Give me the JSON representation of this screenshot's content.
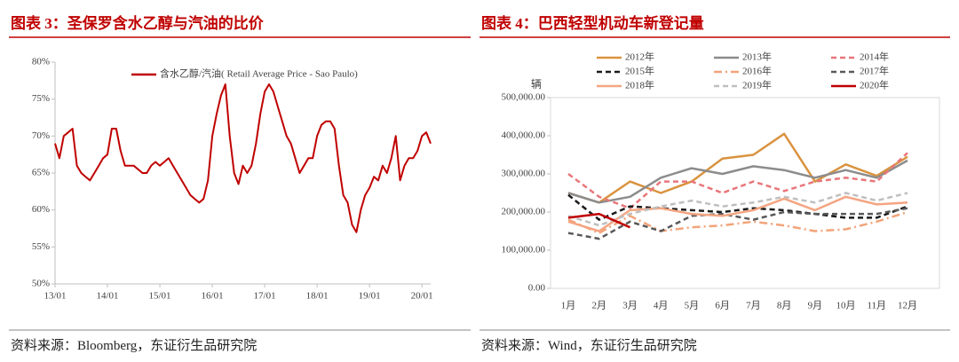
{
  "chart_data": [
    {
      "type": "line",
      "title": "图表 3：圣保罗含水乙醇与汽油的比价",
      "source": "资料来源：Bloomberg，东证衍生品研究院",
      "x": [
        "13/01",
        "13/02",
        "13/03",
        "13/04",
        "13/05",
        "13/06",
        "13/07",
        "13/08",
        "13/09",
        "13/10",
        "13/11",
        "13/12",
        "14/01",
        "14/02",
        "14/03",
        "14/04",
        "14/05",
        "14/06",
        "14/07",
        "14/08",
        "14/09",
        "14/10",
        "14/11",
        "14/12",
        "15/01",
        "15/02",
        "15/03",
        "15/04",
        "15/05",
        "15/06",
        "15/07",
        "15/08",
        "15/09",
        "15/10",
        "15/11",
        "15/12",
        "16/01",
        "16/02",
        "16/03",
        "16/04",
        "16/05",
        "16/06",
        "16/07",
        "16/08",
        "16/09",
        "16/10",
        "16/11",
        "16/12",
        "17/01",
        "17/02",
        "17/03",
        "17/04",
        "17/05",
        "17/06",
        "17/07",
        "17/08",
        "17/09",
        "17/10",
        "17/11",
        "17/12",
        "18/01",
        "18/02",
        "18/03",
        "18/04",
        "18/05",
        "18/06",
        "18/07",
        "18/08",
        "18/09",
        "18/10",
        "18/11",
        "18/12",
        "19/01",
        "19/02",
        "19/03",
        "19/04",
        "19/05",
        "19/06",
        "19/07",
        "19/08",
        "19/09",
        "19/10",
        "19/11",
        "19/12",
        "20/01",
        "20/02",
        "20/03"
      ],
      "series": [
        {
          "name": "含水乙醇/汽油( Retail Average Price - Sao Paulo)",
          "color": "#c00000",
          "style": "solid",
          "values": [
            69,
            67,
            70,
            70.5,
            71,
            66,
            65,
            64.5,
            64,
            65,
            66,
            67,
            67.5,
            71,
            71,
            68,
            66,
            66,
            66,
            65.5,
            65,
            65,
            66,
            66.5,
            66,
            66.5,
            67,
            66,
            65,
            64,
            63,
            62,
            61.5,
            61,
            61.5,
            64,
            70,
            73,
            75.5,
            77,
            70,
            65,
            63.5,
            66,
            65,
            66,
            69,
            73,
            76,
            77,
            76,
            74,
            72,
            70,
            69,
            67,
            65,
            66,
            67,
            67,
            70,
            71.5,
            72,
            72,
            71,
            66,
            62,
            61,
            58,
            57,
            60,
            62,
            63,
            64.5,
            64,
            66,
            65,
            67,
            70,
            64,
            66,
            67,
            67,
            68,
            70,
            70.5,
            69
          ]
        }
      ],
      "xticks": [
        "13/01",
        "14/01",
        "15/01",
        "16/01",
        "17/01",
        "18/01",
        "19/01",
        "20/01"
      ],
      "ylim": [
        50,
        80
      ],
      "yticks": [
        {
          "value": 50,
          "label": "50%"
        },
        {
          "value": 55,
          "label": "55%"
        },
        {
          "value": 60,
          "label": "60%"
        },
        {
          "value": 65,
          "label": "65%"
        },
        {
          "value": 70,
          "label": "70%"
        },
        {
          "value": 75,
          "label": "75%"
        },
        {
          "value": 80,
          "label": "80%"
        }
      ],
      "grid": false
    },
    {
      "type": "line",
      "title": "图表 4：巴西轻型机动车新登记量",
      "source": "资料来源：Wind，东证衍生品研究院",
      "ylabel": "辆",
      "x": [
        "1月",
        "2月",
        "3月",
        "4月",
        "5月",
        "6月",
        "7月",
        "8月",
        "9月",
        "10月",
        "11月",
        "12月"
      ],
      "series": [
        {
          "name": "2012年",
          "color": "#d9933f",
          "style": "solid",
          "values": [
            250000,
            225000,
            280000,
            250000,
            280000,
            340000,
            350000,
            405000,
            280000,
            325000,
            295000,
            345000
          ]
        },
        {
          "name": "2013年",
          "color": "#8c8c8c",
          "style": "solid",
          "values": [
            250000,
            225000,
            240000,
            290000,
            315000,
            300000,
            320000,
            310000,
            290000,
            310000,
            290000,
            335000
          ]
        },
        {
          "name": "2014年",
          "color": "#e8767a",
          "style": "dash",
          "values": [
            300000,
            240000,
            210000,
            280000,
            280000,
            250000,
            280000,
            255000,
            280000,
            290000,
            280000,
            355000
          ]
        },
        {
          "name": "2015年",
          "color": "#1a1a1a",
          "style": "dash",
          "values": [
            245000,
            180000,
            215000,
            210000,
            205000,
            200000,
            210000,
            205000,
            195000,
            185000,
            185000,
            215000
          ]
        },
        {
          "name": "2016年",
          "color": "#f2a47a",
          "style": "dashdot",
          "values": [
            180000,
            145000,
            190000,
            150000,
            160000,
            165000,
            175000,
            165000,
            150000,
            155000,
            175000,
            200000
          ]
        },
        {
          "name": "2017年",
          "color": "#595959",
          "style": "dash",
          "values": [
            145000,
            130000,
            175000,
            150000,
            190000,
            195000,
            180000,
            200000,
            195000,
            195000,
            195000,
            210000
          ]
        },
        {
          "name": "2018年",
          "color": "#f4a582",
          "style": "solid",
          "values": [
            175000,
            150000,
            205000,
            210000,
            195000,
            190000,
            205000,
            235000,
            205000,
            240000,
            220000,
            225000
          ]
        },
        {
          "name": "2019年",
          "color": "#bfbfbf",
          "style": "dash",
          "values": [
            190000,
            165000,
            195000,
            215000,
            230000,
            215000,
            225000,
            240000,
            225000,
            250000,
            230000,
            250000
          ]
        },
        {
          "name": "2020年",
          "color": "#c00000",
          "style": "solid",
          "values": [
            185000,
            195000,
            160000,
            null,
            null,
            null,
            null,
            null,
            null,
            null,
            null,
            null
          ]
        }
      ],
      "xticks": [
        "1月",
        "2月",
        "3月",
        "4月",
        "5月",
        "6月",
        "7月",
        "8月",
        "9月",
        "10月",
        "11月",
        "12月"
      ],
      "ylim": [
        0,
        500000
      ],
      "yticks": [
        {
          "value": 0,
          "label": "0.00"
        },
        {
          "value": 100000,
          "label": "100,000.00"
        },
        {
          "value": 200000,
          "label": "200,000.00"
        },
        {
          "value": 300000,
          "label": "300,000.00"
        },
        {
          "value": 400000,
          "label": "400,000.00"
        },
        {
          "value": 500000,
          "label": "500,000.00"
        }
      ],
      "grid": false
    }
  ]
}
